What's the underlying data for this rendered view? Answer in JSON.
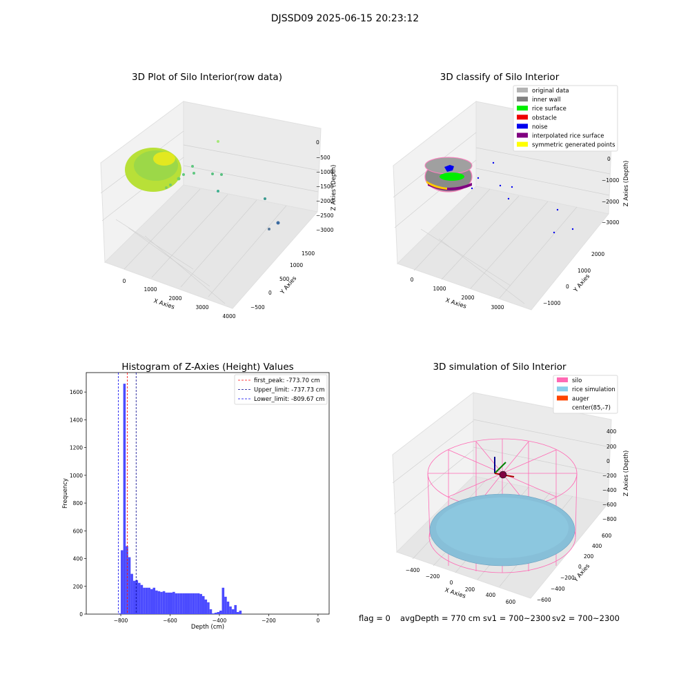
{
  "figure": {
    "suptitle": "DJSSD09 2025-06-15 20:23:12",
    "footer": {
      "flag": "flag = 0",
      "avg_depth": "avgDepth = 770 cm",
      "sv1": "sv1 = 700~2300",
      "sv2": "sv2 = 700~2300"
    }
  },
  "panel_raw": {
    "title": "3D Plot of Silo Interior(row data)",
    "xlabel": "X Axies",
    "ylabel": "Y Axies",
    "zlabel": "Z Axies (Depth)",
    "x_ticks": [
      "0",
      "1000",
      "2000",
      "3000",
      "4000"
    ],
    "y_ticks": [
      "−500",
      "0",
      "500",
      "1000",
      "1500"
    ],
    "z_ticks": [
      "0",
      "−500",
      "−1000",
      "−1500",
      "−2000",
      "−2500",
      "−3000"
    ]
  },
  "panel_classify": {
    "title": "3D classify of Silo Interior",
    "xlabel": "X Axies",
    "ylabel": "Y Axies",
    "zlabel": "Z Axies (Depth)",
    "x_ticks": [
      "0",
      "1000",
      "2000",
      "3000"
    ],
    "y_ticks": [
      "−1000",
      "0",
      "1000",
      "2000"
    ],
    "z_ticks": [
      "0",
      "−1000",
      "−2000",
      "−3000"
    ],
    "legend": [
      {
        "label": "original data",
        "color": "#b4b4b4"
      },
      {
        "label": "inner wall",
        "color": "#808080"
      },
      {
        "label": "rice surface",
        "color": "#00ee00"
      },
      {
        "label": "obstacle",
        "color": "#ee0000"
      },
      {
        "label": "noise",
        "color": "#0000ee"
      },
      {
        "label": "interpolated rice surface",
        "color": "#800080"
      },
      {
        "label": "symmetric generated points",
        "color": "#ffff00"
      }
    ]
  },
  "panel_sim": {
    "title": "3D simulation of Silo Interior",
    "xlabel": "X Axies",
    "ylabel": "Y Axies",
    "zlabel": "Z Axies (Depth)",
    "x_ticks": [
      "−400",
      "−200",
      "0",
      "200",
      "400",
      "600"
    ],
    "y_ticks": [
      "−600",
      "−400",
      "−200",
      "0",
      "200",
      "400",
      "600"
    ],
    "z_ticks": [
      "400",
      "200",
      "0",
      "−200",
      "−400",
      "−600",
      "−800"
    ],
    "legend": [
      {
        "label": "silo",
        "color": "#ff69b4"
      },
      {
        "label": "rice simulation",
        "color": "#87ceeb"
      },
      {
        "label": "auger",
        "color": "#ff4500"
      },
      {
        "label": "center(85,-7)",
        "color": ""
      }
    ]
  },
  "chart_data": {
    "type": "bar",
    "title": "Histogram of Z-Axies (Height) Values",
    "xlabel": "Depth (cm)",
    "ylabel": "Frequency",
    "xlim": [
      -940,
      45
    ],
    "ylim": [
      0,
      1740
    ],
    "x_ticks": [
      -800,
      -600,
      -400,
      -200,
      0
    ],
    "y_ticks": [
      0,
      200,
      400,
      600,
      800,
      1000,
      1200,
      1400,
      1600
    ],
    "x_tick_labels": [
      "−800",
      "−600",
      "−400",
      "−200",
      "0"
    ],
    "bin_edges": [
      -810,
      -800,
      -790,
      -780,
      -770,
      -760,
      -750,
      -740,
      -730,
      -720,
      -710,
      -700,
      -690,
      -680,
      -670,
      -660,
      -650,
      -640,
      -630,
      -620,
      -610,
      -600,
      -590,
      -580,
      -570,
      -560,
      -550,
      -540,
      -530,
      -520,
      -510,
      -500,
      -490,
      -480,
      -470,
      -460,
      -450,
      -440,
      -430,
      -420,
      -410,
      -400,
      -390,
      -380,
      -370,
      -360,
      -350,
      -340,
      -330,
      -320,
      -310,
      -300,
      -290,
      -280,
      -270,
      -260,
      -250,
      -240,
      -230,
      -220,
      -210,
      -200,
      -190,
      -180,
      -170,
      -160,
      -150,
      -140,
      -130,
      -120,
      -110,
      -100,
      -90,
      -80,
      -70,
      -60,
      -50,
      -40,
      -30,
      -20,
      -10,
      0
    ],
    "counts": [
      5,
      460,
      1660,
      490,
      410,
      290,
      240,
      245,
      225,
      210,
      190,
      190,
      190,
      180,
      190,
      170,
      165,
      160,
      165,
      155,
      155,
      155,
      160,
      150,
      150,
      150,
      150,
      150,
      150,
      150,
      150,
      150,
      150,
      145,
      130,
      105,
      85,
      35,
      5,
      10,
      15,
      25,
      190,
      125,
      90,
      55,
      35,
      65,
      15,
      25,
      0,
      0,
      0,
      0,
      0,
      0,
      0,
      0,
      0,
      0,
      0,
      0,
      0,
      0,
      0,
      0,
      0,
      0,
      0,
      0,
      0,
      0,
      0,
      0,
      0,
      0,
      0,
      0,
      0,
      0,
      0
    ],
    "bar_color": "#4b4bff",
    "vlines": [
      {
        "x": -773.7,
        "label": "first_peak: -773.70 cm",
        "color": "#ff0000"
      },
      {
        "x": -737.73,
        "label": "Upper_limit: -737.73 cm",
        "color": "#00008b"
      },
      {
        "x": -809.67,
        "label": "Lower_limit: -809.67 cm",
        "color": "#0000ee"
      }
    ],
    "legend_position": "upper right"
  }
}
